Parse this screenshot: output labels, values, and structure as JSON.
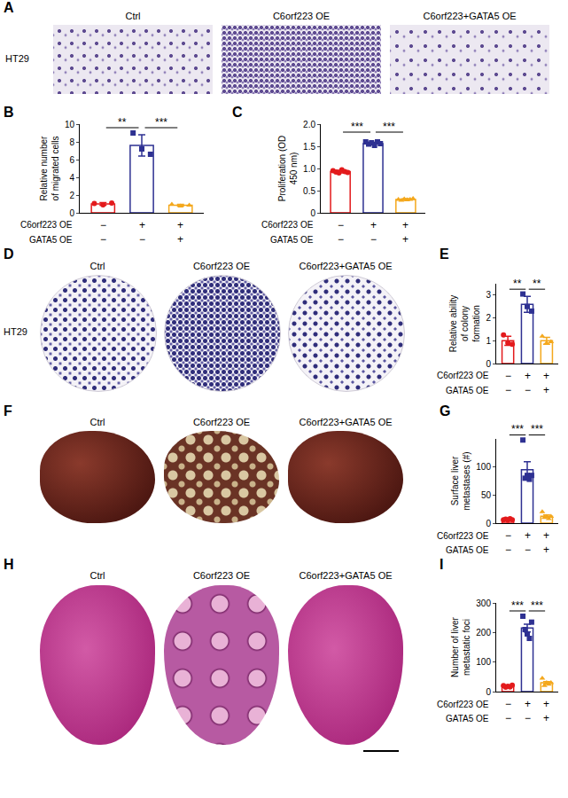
{
  "image_panels": [
    {
      "panel": "A",
      "row_label": "HT29",
      "labels": [
        "Ctrl",
        "C6orf223 OE",
        "C6orf223+GATA5 OE"
      ]
    },
    {
      "panel": "D",
      "row_label": "HT29",
      "labels": [
        "Ctrl",
        "C6orf223 OE",
        "C6orf223+GATA5 OE"
      ]
    },
    {
      "panel": "F",
      "labels": [
        "Ctrl",
        "C6orf223 OE",
        "C6orf223+GATA5 OE"
      ]
    },
    {
      "panel": "H",
      "labels": [
        "Ctrl",
        "C6orf223 OE",
        "C6orf223+GATA5 OE"
      ]
    }
  ],
  "chart_data": [
    {
      "type": "bar",
      "panel": "B",
      "ylabel": "Relative number of migrated cells",
      "categories": [
        null,
        null,
        null
      ],
      "x_table": [
        {
          "label": "C6orf223 OE",
          "values": [
            "−",
            "+",
            "+"
          ]
        },
        {
          "label": "GATA5 OE",
          "values": [
            "−",
            "−",
            "+"
          ]
        }
      ],
      "values": [
        1.0,
        7.6,
        0.85
      ],
      "errors": [
        0.15,
        1.2,
        0.1
      ],
      "points": [
        [
          1.05,
          0.9,
          1.1
        ],
        [
          9.0,
          7.2,
          6.6
        ],
        [
          0.95,
          0.75,
          0.85
        ]
      ],
      "colors": [
        "#e31a1c",
        "#2e3192",
        "#f4a81d"
      ],
      "marker": [
        "circle",
        "square",
        "triangle-up"
      ],
      "ylim": [
        0,
        10
      ],
      "yticks": [
        0,
        2,
        4,
        6,
        8,
        10
      ],
      "grid": false,
      "tick_labels": "y",
      "significance": [
        {
          "between": [
            0,
            1
          ],
          "label": "**"
        },
        {
          "between": [
            1,
            2
          ],
          "label": "***"
        }
      ]
    },
    {
      "type": "bar",
      "panel": "C",
      "ylabel": "Proliferation (OD 450 nm)",
      "categories": [
        null,
        null,
        null
      ],
      "x_table": [
        {
          "label": "C6orf223 OE",
          "values": [
            "−",
            "+",
            "+"
          ]
        },
        {
          "label": "GATA5 OE",
          "values": [
            "−",
            "−",
            "+"
          ]
        }
      ],
      "values": [
        0.93,
        1.56,
        0.3
      ],
      "errors": [
        0.03,
        0.03,
        0.02
      ],
      "points": [
        [
          0.95,
          0.92,
          0.9,
          0.97,
          0.93,
          0.91
        ],
        [
          1.6,
          1.55,
          1.58,
          1.52,
          1.6,
          1.56
        ],
        [
          0.3,
          0.28,
          0.31,
          0.29,
          0.3,
          0.32
        ]
      ],
      "colors": [
        "#e31a1c",
        "#2e3192",
        "#f4a81d"
      ],
      "marker": [
        "circle",
        "square",
        "triangle-up"
      ],
      "ylim": [
        0,
        2
      ],
      "yticks": [
        0,
        0.5,
        {
          "value": 1,
          "label": "1.0"
        },
        1.5,
        {
          "value": 2,
          "label": "2.0"
        }
      ],
      "grid": false,
      "tick_labels": "y",
      "significance": [
        {
          "between": [
            0,
            1
          ],
          "label": "***"
        },
        {
          "between": [
            1,
            2
          ],
          "label": "***"
        }
      ]
    },
    {
      "type": "bar",
      "panel": "E",
      "ylabel": "Relative ability of colony formation",
      "categories": [
        null,
        null,
        null
      ],
      "x_table": [
        {
          "label": "C6orf223 OE",
          "values": [
            "−",
            "+",
            "+"
          ]
        },
        {
          "label": "GATA5 OE",
          "values": [
            "−",
            "−",
            "+"
          ]
        }
      ],
      "values": [
        1.0,
        2.6,
        1.0
      ],
      "errors": [
        0.2,
        0.35,
        0.15
      ],
      "points": [
        [
          1.25,
          0.9,
          0.85
        ],
        [
          3.05,
          2.5,
          2.3
        ],
        [
          1.2,
          0.9,
          0.95
        ]
      ],
      "colors": [
        "#e31a1c",
        "#2e3192",
        "#f4a81d"
      ],
      "marker": [
        "circle",
        "square",
        "triangle-up"
      ],
      "ylim": [
        0,
        3.5
      ],
      "yticks": [
        0,
        1,
        2,
        3
      ],
      "grid": false,
      "tick_labels": "y",
      "significance": [
        {
          "between": [
            0,
            1
          ],
          "label": "**"
        },
        {
          "between": [
            1,
            2
          ],
          "label": "**"
        }
      ]
    },
    {
      "type": "bar",
      "panel": "G",
      "ylabel": "Surface liver metastases (#)",
      "categories": [
        null,
        null,
        null
      ],
      "x_table": [
        {
          "label": "C6orf223 OE",
          "values": [
            "−",
            "+",
            "+"
          ]
        },
        {
          "label": "GATA5 OE",
          "values": [
            "−",
            "−",
            "+"
          ]
        }
      ],
      "values": [
        6.4,
        95.2,
        12.4
      ],
      "errors": [
        0.5,
        14,
        2.2
      ],
      "points": [
        [
          6,
          7,
          5,
          8,
          6
        ],
        [
          148,
          80,
          85,
          78,
          85
        ],
        [
          20,
          10,
          12,
          8,
          12
        ]
      ],
      "colors": [
        "#e31a1c",
        "#2e3192",
        "#f4a81d"
      ],
      "marker": [
        "circle",
        "square",
        "triangle-up"
      ],
      "ylim": [
        0,
        150
      ],
      "yticks": [
        0,
        50,
        100
      ],
      "grid": false,
      "tick_labels": "y",
      "significance": [
        {
          "between": [
            0,
            1
          ],
          "label": "***"
        },
        {
          "between": [
            1,
            2
          ],
          "label": "***"
        }
      ]
    },
    {
      "type": "bar",
      "panel": "I",
      "ylabel": "Number of liver metastatic foci",
      "categories": [
        null,
        null,
        null
      ],
      "x_table": [
        {
          "label": "C6orf223 OE",
          "values": [
            "−",
            "+",
            "+"
          ]
        },
        {
          "label": "GATA5 OE",
          "values": [
            "−",
            "−",
            "+"
          ]
        }
      ],
      "values": [
        18.2,
        215,
        30
      ],
      "errors": [
        1.3,
        13,
        4
      ],
      "points": [
        [
          20,
          15,
          18,
          16,
          22
        ],
        [
          255,
          210,
          195,
          180,
          235
        ],
        [
          45,
          20,
          30,
          25,
          30
        ]
      ],
      "colors": [
        "#e31a1c",
        "#2e3192",
        "#f4a81d"
      ],
      "marker": [
        "circle",
        "square",
        "triangle-up"
      ],
      "ylim": [
        0,
        300
      ],
      "yticks": [
        0,
        100,
        200,
        300
      ],
      "grid": false,
      "tick_labels": "y",
      "significance": [
        {
          "between": [
            0,
            1
          ],
          "label": "***"
        },
        {
          "between": [
            1,
            2
          ],
          "label": "***"
        }
      ]
    }
  ]
}
